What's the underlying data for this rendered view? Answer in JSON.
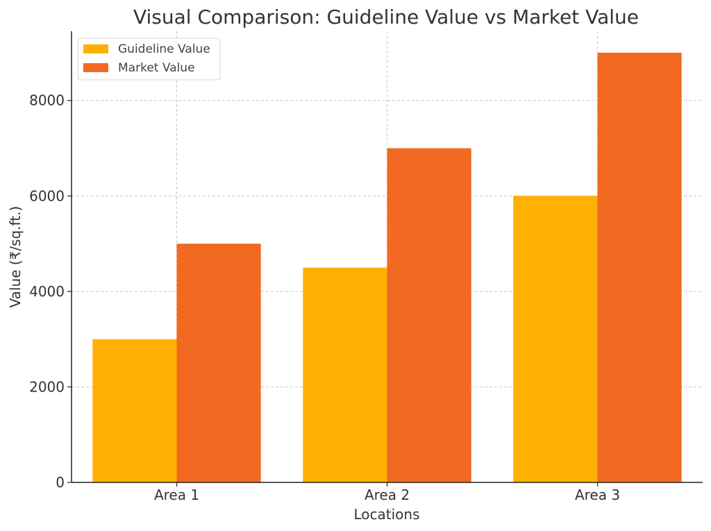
{
  "chart_data": {
    "type": "bar",
    "title": "Visual Comparison: Guideline Value vs Market Value",
    "xlabel": "Locations",
    "ylabel": "Value (₹/sq.ft.)",
    "categories": [
      "Area 1",
      "Area 2",
      "Area 3"
    ],
    "series": [
      {
        "name": "Guideline Value",
        "values": [
          3000,
          4500,
          6000
        ],
        "color": "#FFB000"
      },
      {
        "name": "Market Value",
        "values": [
          5000,
          7000,
          9000
        ],
        "color": "#F26A22"
      }
    ],
    "ylim": [
      0,
      9450
    ],
    "yticks": [
      0,
      2000,
      4000,
      6000,
      8000
    ],
    "grid": true,
    "legend_position": "top-left"
  }
}
